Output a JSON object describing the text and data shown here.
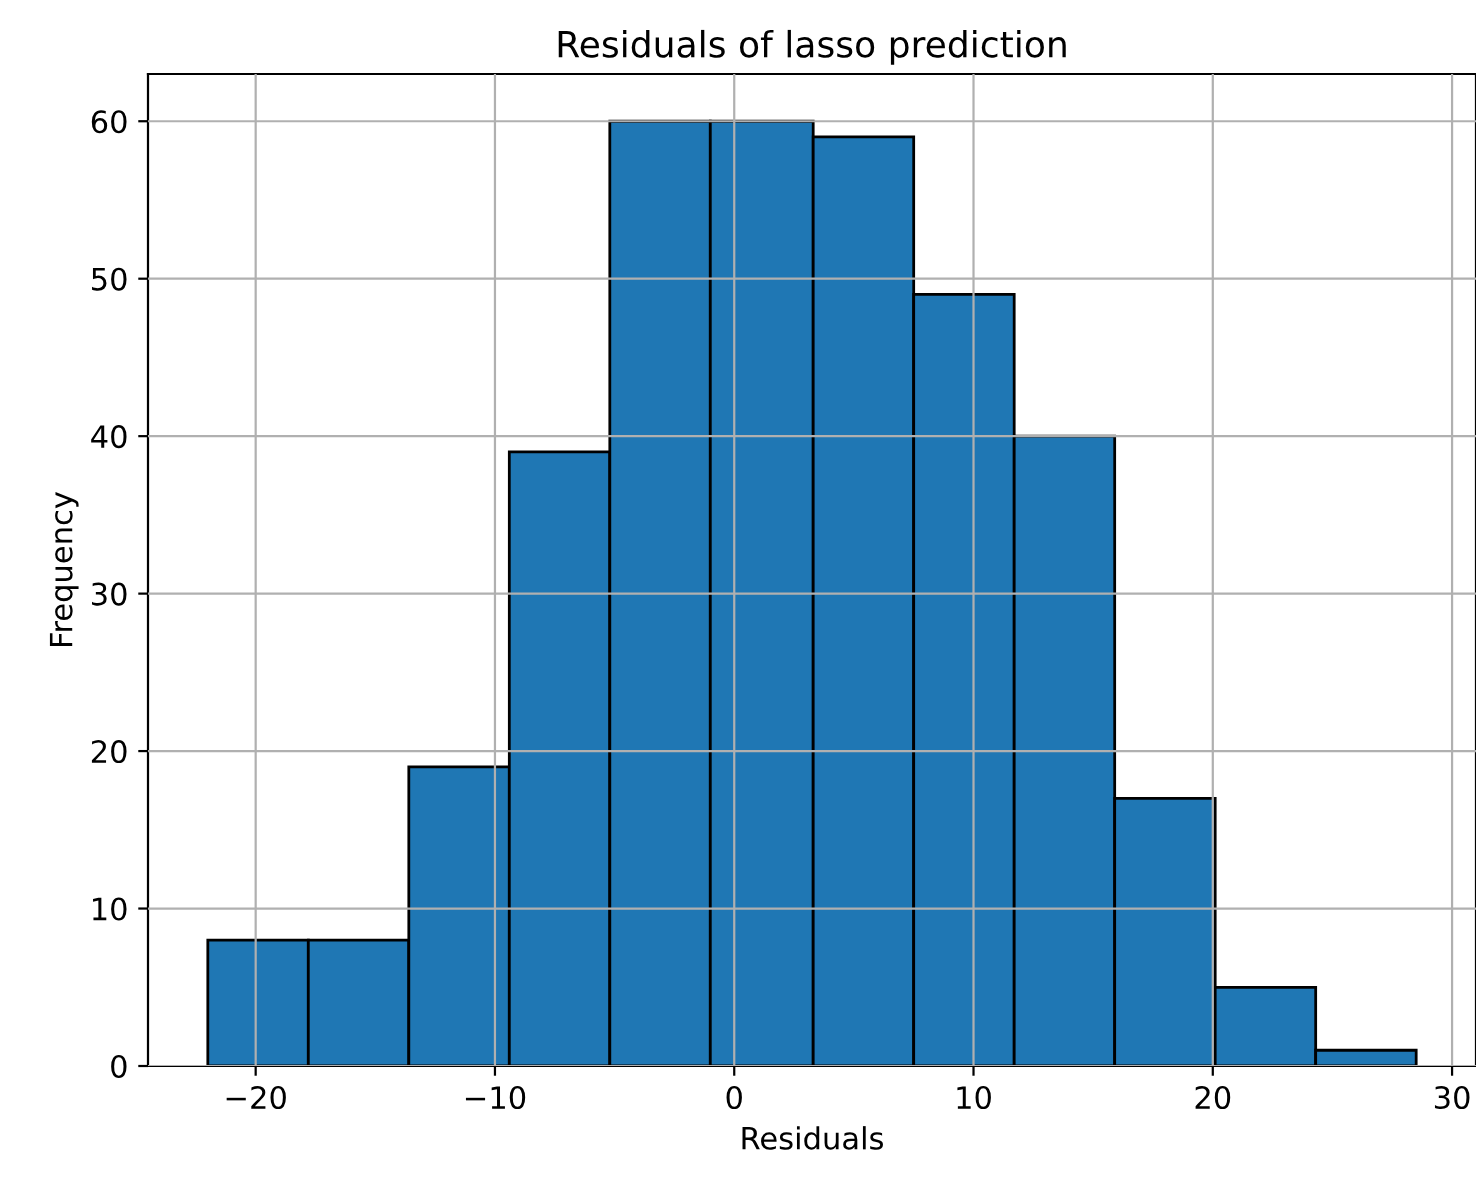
{
  "chart_data": {
    "type": "histogram",
    "title": "Residuals of lasso prediction",
    "xlabel": "Residuals",
    "ylabel": "Frequency",
    "bins": [
      -22.0,
      -17.8,
      -13.6,
      -9.4,
      -5.2,
      -1.0,
      3.3,
      7.5,
      11.7,
      15.9,
      20.1,
      24.3,
      28.5
    ],
    "values": [
      8,
      8,
      19,
      39,
      60,
      60,
      59,
      49,
      40,
      17,
      5,
      1
    ],
    "color": "#1f77b4",
    "xlim": [
      -24.5,
      31.0
    ],
    "xticks": [
      {
        "value": -20,
        "label": "−20"
      },
      {
        "value": -10,
        "label": "−10"
      },
      0,
      10,
      20,
      30
    ],
    "ylim": [
      0,
      63
    ],
    "yticks": [
      0,
      10,
      20,
      30,
      40,
      50,
      60
    ],
    "grid": true
  }
}
